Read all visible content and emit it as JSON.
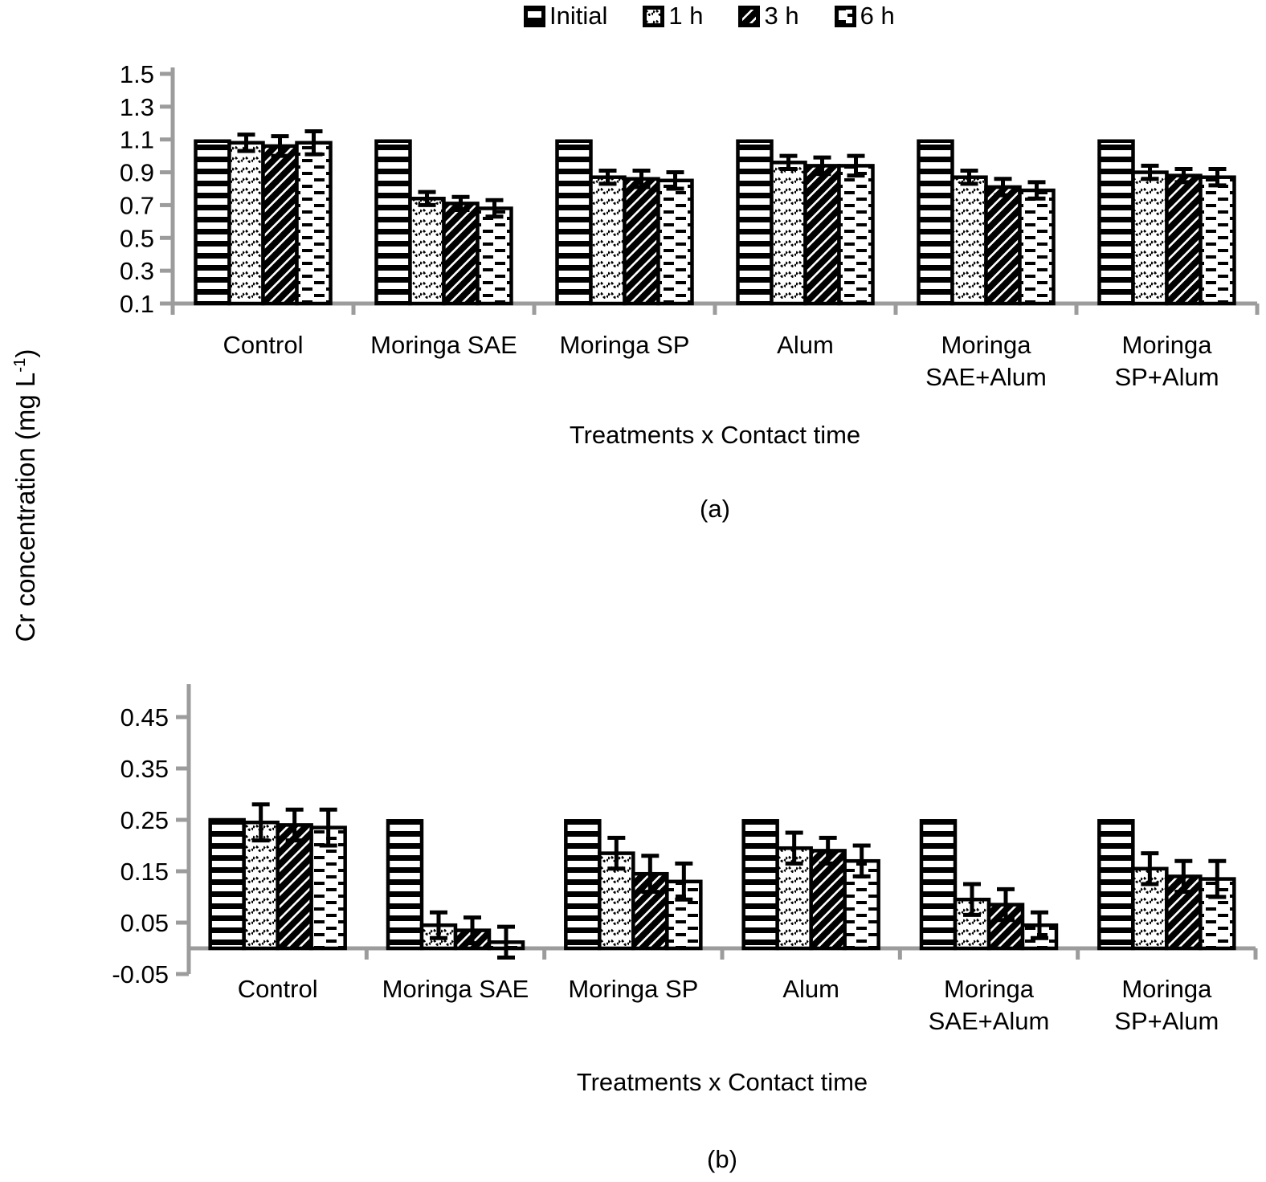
{
  "y_axis_label": {
    "prefix": "Cr concentration (mg L",
    "sup": "-1",
    "suffix": ")"
  },
  "legend": {
    "items": [
      {
        "label": "Initial",
        "pattern": "hstripes"
      },
      {
        "label": "1 h",
        "pattern": "waves"
      },
      {
        "label": "3 h",
        "pattern": "diagonal"
      },
      {
        "label": "6 h",
        "pattern": "dashes"
      }
    ]
  },
  "colors": {
    "bar_outline": "#000000",
    "axis": "#9c9c9c",
    "text": "#000000",
    "background": "#ffffff"
  },
  "chart_data": [
    {
      "id": "a",
      "type": "bar",
      "panel_label": "(a)",
      "xlabel": "Treatments x Contact time",
      "ylabel": "Cr concentration (mg L-1)",
      "categories": [
        [
          "Control"
        ],
        [
          "Moringa SAE"
        ],
        [
          "Moringa SP"
        ],
        [
          "Alum"
        ],
        [
          "Moringa",
          "SAE+Alum"
        ],
        [
          "Moringa",
          "SP+Alum"
        ]
      ],
      "y_ticks": [
        0.1,
        0.3,
        0.5,
        0.7,
        0.9,
        1.1,
        1.3,
        1.5
      ],
      "ylim": [
        0.1,
        1.5
      ],
      "baseline": 0.1,
      "grid": false,
      "legend_position": "top-center",
      "series": [
        {
          "name": "Initial",
          "pattern": "hstripes",
          "values": [
            1.09,
            1.09,
            1.09,
            1.09,
            1.09,
            1.09
          ],
          "errors": [
            0,
            0,
            0,
            0,
            0,
            0
          ]
        },
        {
          "name": "1 h",
          "pattern": "waves",
          "values": [
            1.08,
            0.74,
            0.87,
            0.96,
            0.87,
            0.9
          ],
          "errors": [
            0.05,
            0.04,
            0.04,
            0.04,
            0.04,
            0.04
          ]
        },
        {
          "name": "3 h",
          "pattern": "diagonal",
          "values": [
            1.06,
            0.71,
            0.86,
            0.94,
            0.81,
            0.88
          ],
          "errors": [
            0.06,
            0.04,
            0.05,
            0.05,
            0.05,
            0.04
          ]
        },
        {
          "name": "6 h",
          "pattern": "dashes",
          "values": [
            1.08,
            0.68,
            0.85,
            0.94,
            0.79,
            0.87
          ],
          "errors": [
            0.07,
            0.05,
            0.05,
            0.06,
            0.05,
            0.05
          ]
        }
      ]
    },
    {
      "id": "b",
      "type": "bar",
      "panel_label": "(b)",
      "xlabel": "Treatments x Contact time",
      "ylabel": "Cr concentration (mg L-1)",
      "categories": [
        [
          "Control"
        ],
        [
          "Moringa SAE"
        ],
        [
          "Moringa SP"
        ],
        [
          "Alum"
        ],
        [
          "Moringa",
          "SAE+Alum"
        ],
        [
          "Moringa",
          "SP+Alum"
        ]
      ],
      "y_ticks": [
        -0.05,
        0.05,
        0.15,
        0.25,
        0.35,
        0.45
      ],
      "ylim": [
        -0.05,
        0.5
      ],
      "baseline": 0,
      "grid": false,
      "legend_position": "top-center",
      "series": [
        {
          "name": "Initial",
          "pattern": "hstripes",
          "values": [
            0.25,
            0.248,
            0.248,
            0.248,
            0.248,
            0.248
          ],
          "errors": [
            0,
            0,
            0,
            0,
            0,
            0
          ]
        },
        {
          "name": "1 h",
          "pattern": "waves",
          "values": [
            0.245,
            0.045,
            0.185,
            0.195,
            0.095,
            0.155
          ],
          "errors": [
            0.035,
            0.025,
            0.03,
            0.03,
            0.03,
            0.03
          ]
        },
        {
          "name": "3 h",
          "pattern": "diagonal",
          "values": [
            0.24,
            0.035,
            0.145,
            0.19,
            0.085,
            0.14
          ],
          "errors": [
            0.03,
            0.025,
            0.035,
            0.025,
            0.03,
            0.03
          ]
        },
        {
          "name": "6 h",
          "pattern": "dashes",
          "values": [
            0.235,
            0.012,
            0.13,
            0.17,
            0.045,
            0.135
          ],
          "errors": [
            0.035,
            0.03,
            0.035,
            0.03,
            0.025,
            0.035
          ]
        }
      ]
    }
  ]
}
